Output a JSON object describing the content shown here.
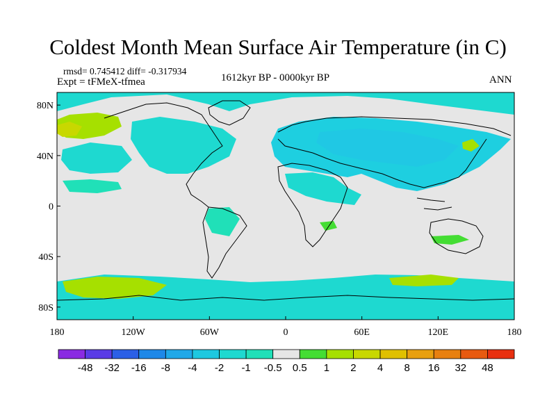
{
  "title": "Coldest Month Mean Surface Air Temperature (in C)",
  "stats": "rmsd= 0.745412 diff= -0.317934",
  "experiment": "Expt = tFMeX-tfmea",
  "period": "1612kyr BP - 0000kyr BP",
  "season": "ANN",
  "map": {
    "projection": "cylindrical-equidistant",
    "lon_range": [
      -180,
      180
    ],
    "lat_range": [
      -90,
      90
    ],
    "lon_ticks": [
      {
        "lon": -180,
        "label": "180"
      },
      {
        "lon": -120,
        "label": "120W"
      },
      {
        "lon": -60,
        "label": "60W"
      },
      {
        "lon": 0,
        "label": "0"
      },
      {
        "lon": 60,
        "label": "60E"
      },
      {
        "lon": 120,
        "label": "120E"
      },
      {
        "lon": 180,
        "label": "180"
      }
    ],
    "lat_ticks": [
      {
        "lat": 80,
        "label": "80N"
      },
      {
        "lat": 40,
        "label": "40N"
      },
      {
        "lat": 0,
        "label": "0"
      },
      {
        "lat": -40,
        "label": "40S"
      },
      {
        "lat": -80,
        "label": "80S"
      }
    ],
    "background_color": "#e6e6e6",
    "coastline_color": "#000000"
  },
  "colorbar": {
    "colors": [
      "#8a2be2",
      "#5a3ce6",
      "#2b5fe6",
      "#1e88e8",
      "#20a8e8",
      "#1ec8e0",
      "#1ed9d0",
      "#20e0b8",
      "#e6e6e6",
      "#44dd33",
      "#a6e000",
      "#c8d800",
      "#e0c000",
      "#e8a010",
      "#e88010",
      "#e85a10",
      "#e83010"
    ],
    "labels": [
      "-48",
      "-32",
      "-16",
      "-8",
      "-4",
      "-2",
      "-1",
      "-0.5",
      "0.5",
      "1",
      "2",
      "4",
      "8",
      "16",
      "32",
      "48"
    ]
  }
}
